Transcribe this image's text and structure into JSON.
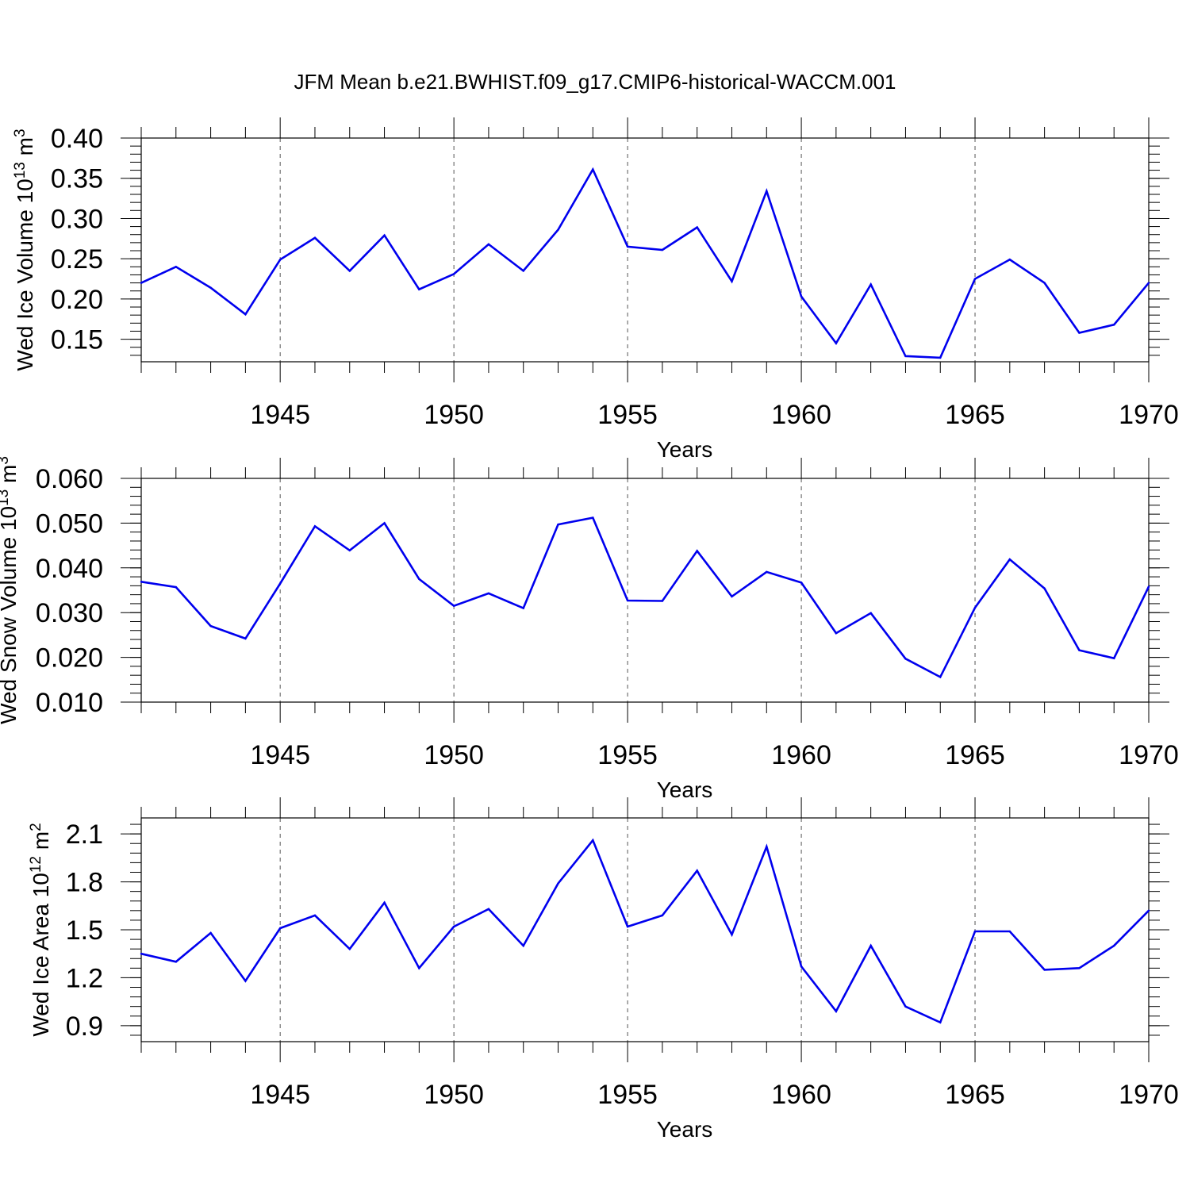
{
  "title": "JFM Mean b.e21.BWHIST.f09_g17.CMIP6-historical-WACCM.001",
  "colors": {
    "line": "#0000ee",
    "axis": "#000000",
    "grid": "#555555"
  },
  "chart_data": [
    {
      "type": "line",
      "ylabel_main": "Wed Ice Volume 10",
      "ylabel_exp": "13",
      "ylabel_unit": " m",
      "ylabel_unit_exp": "3",
      "xlabel": "Years",
      "xlim": [
        1941,
        1970
      ],
      "xticks": [
        1945,
        1950,
        1955,
        1960,
        1965,
        1970
      ],
      "ylim": [
        0.122,
        0.4
      ],
      "yticks": [
        0.15,
        0.2,
        0.25,
        0.3,
        0.35,
        0.4
      ],
      "ytick_labels": [
        "0.15",
        "0.20",
        "0.25",
        "0.30",
        "0.35",
        "0.40"
      ],
      "grid": "vertical dashed at x ticks",
      "x": [
        1941,
        1942,
        1943,
        1944,
        1945,
        1946,
        1947,
        1948,
        1949,
        1950,
        1951,
        1952,
        1953,
        1954,
        1955,
        1956,
        1957,
        1958,
        1959,
        1960,
        1961,
        1962,
        1963,
        1964,
        1965,
        1966,
        1967,
        1968,
        1969,
        1970
      ],
      "y": [
        0.22,
        0.24,
        0.214,
        0.181,
        0.249,
        0.276,
        0.235,
        0.279,
        0.212,
        0.231,
        0.268,
        0.235,
        0.286,
        0.361,
        0.265,
        0.261,
        0.289,
        0.222,
        0.334,
        0.203,
        0.145,
        0.218,
        0.129,
        0.127,
        0.225,
        0.249,
        0.22,
        0.158,
        0.168,
        0.22
      ]
    },
    {
      "type": "line",
      "ylabel_main": "Wed Snow Volume 10",
      "ylabel_exp": "13",
      "ylabel_unit": " m",
      "ylabel_unit_exp": "3",
      "xlabel": "Years",
      "xlim": [
        1941,
        1970
      ],
      "xticks": [
        1945,
        1950,
        1955,
        1960,
        1965,
        1970
      ],
      "ylim": [
        0.01,
        0.06
      ],
      "yticks": [
        0.01,
        0.02,
        0.03,
        0.04,
        0.05,
        0.06
      ],
      "ytick_labels": [
        "0.010",
        "0.020",
        "0.030",
        "0.040",
        "0.050",
        "0.060"
      ],
      "grid": "vertical dashed at x ticks",
      "x": [
        1941,
        1942,
        1943,
        1944,
        1945,
        1946,
        1947,
        1948,
        1949,
        1950,
        1951,
        1952,
        1953,
        1954,
        1955,
        1956,
        1957,
        1958,
        1959,
        1960,
        1961,
        1962,
        1963,
        1964,
        1965,
        1966,
        1967,
        1968,
        1969,
        1970
      ],
      "y": [
        0.0369,
        0.0357,
        0.027,
        0.0242,
        0.0365,
        0.0493,
        0.0439,
        0.05,
        0.0375,
        0.0315,
        0.0343,
        0.031,
        0.0497,
        0.0512,
        0.0327,
        0.0326,
        0.0438,
        0.0336,
        0.0391,
        0.0367,
        0.0254,
        0.0299,
        0.0197,
        0.0156,
        0.0311,
        0.0419,
        0.0354,
        0.0216,
        0.0198,
        0.0358
      ]
    },
    {
      "type": "line",
      "ylabel_main": "Wed Ice Area 10",
      "ylabel_exp": "12",
      "ylabel_unit": " m",
      "ylabel_unit_exp": "2",
      "xlabel": "Years",
      "xlim": [
        1941,
        1970
      ],
      "xticks": [
        1945,
        1950,
        1955,
        1960,
        1965,
        1970
      ],
      "ylim": [
        0.8,
        2.2
      ],
      "yticks": [
        0.9,
        1.2,
        1.5,
        1.8,
        2.1
      ],
      "ytick_labels": [
        "0.9",
        "1.2",
        "1.5",
        "1.8",
        "2.1"
      ],
      "grid": "vertical dashed at x ticks",
      "x": [
        1941,
        1942,
        1943,
        1944,
        1945,
        1946,
        1947,
        1948,
        1949,
        1950,
        1951,
        1952,
        1953,
        1954,
        1955,
        1956,
        1957,
        1958,
        1959,
        1960,
        1961,
        1962,
        1963,
        1964,
        1965,
        1966,
        1967,
        1968,
        1969,
        1970
      ],
      "y": [
        1.35,
        1.3,
        1.48,
        1.18,
        1.51,
        1.59,
        1.38,
        1.67,
        1.26,
        1.52,
        1.63,
        1.4,
        1.79,
        2.06,
        1.52,
        1.59,
        1.87,
        1.47,
        2.02,
        1.27,
        0.99,
        1.4,
        1.02,
        0.92,
        1.49,
        1.49,
        1.25,
        1.26,
        1.4,
        1.62
      ]
    }
  ]
}
